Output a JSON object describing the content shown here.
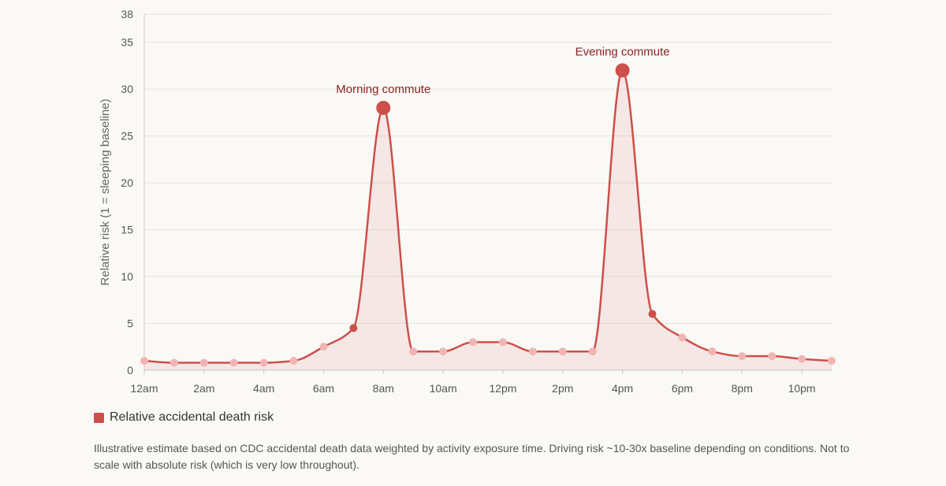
{
  "chart_data": {
    "type": "area",
    "x": [
      "12am",
      "1am",
      "2am",
      "3am",
      "4am",
      "5am",
      "6am",
      "7am",
      "8am",
      "9am",
      "10am",
      "11am",
      "12pm",
      "1pm",
      "2pm",
      "3pm",
      "4pm",
      "5pm",
      "6pm",
      "7pm",
      "8pm",
      "9pm",
      "10pm",
      "11pm"
    ],
    "xticks": [
      "12am",
      "2am",
      "4am",
      "6am",
      "8am",
      "10am",
      "12pm",
      "2pm",
      "4pm",
      "6pm",
      "8pm",
      "10pm"
    ],
    "yticks": [
      0,
      5,
      10,
      15,
      20,
      25,
      30,
      35,
      38
    ],
    "ylim": [
      0,
      38
    ],
    "ylabel": "Relative risk (1 = sleeping baseline)",
    "grid": true,
    "series": [
      {
        "name": "Relative accidental death risk",
        "color": "#cd4f4a",
        "values": [
          1,
          0.8,
          0.8,
          0.8,
          0.8,
          1,
          2.5,
          4.5,
          28,
          2,
          2,
          3,
          3,
          2,
          2,
          2,
          32,
          6,
          3.5,
          2,
          1.5,
          1.5,
          1.2,
          1
        ]
      }
    ],
    "annotations": [
      {
        "index": 8,
        "text": "Morning commute"
      },
      {
        "index": 16,
        "text": "Evening commute"
      }
    ],
    "legend_position": "bottom-left"
  },
  "footnote": "Illustrative estimate based on CDC accidental death data weighted by activity exposure time. Driving risk ~10-30x baseline depending on conditions. Not to scale with absolute risk (which is very low throughout)."
}
